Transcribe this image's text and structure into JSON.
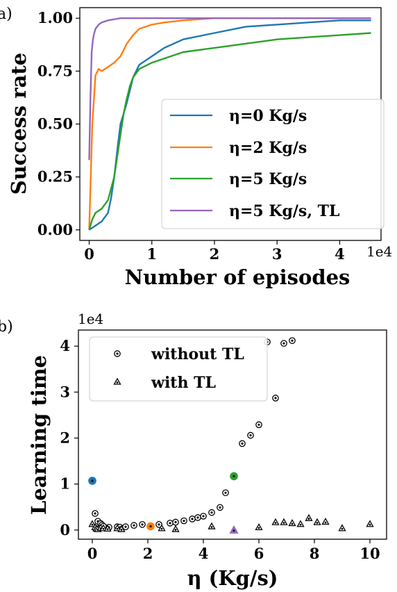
{
  "colors": {
    "blue": "#1f77b4",
    "orange": "#ff7f0e",
    "green": "#2ca02c",
    "purple": "#9467bd"
  },
  "chart_data": [
    {
      "panel_label": "a)",
      "type": "line",
      "xlabel": "Number of episodes",
      "ylabel": "Success rate",
      "x_multiplier": "1e4",
      "xlim": [
        -0.15,
        4.66
      ],
      "ylim": [
        -0.05,
        1.05
      ],
      "xticks": [
        0,
        1,
        2,
        3,
        4
      ],
      "xtick_labels": [
        "0",
        "1",
        "2",
        "3",
        "4"
      ],
      "yticks": [
        0,
        0.25,
        0.5,
        0.75,
        1
      ],
      "ytick_labels": [
        "0.00",
        "0.25",
        "0.50",
        "0.75",
        "1.00"
      ],
      "legend_location": "lower-right",
      "series": [
        {
          "name": "η=0 Kg/s",
          "color_key": "blue",
          "x": [
            0,
            0.1,
            0.2,
            0.3,
            0.35,
            0.4,
            0.45,
            0.5,
            0.55,
            0.6,
            0.65,
            0.7,
            0.8,
            0.9,
            1.0,
            1.2,
            1.5,
            2.0,
            2.5,
            3.0,
            3.5,
            4.0,
            4.5
          ],
          "y": [
            0.0,
            0.02,
            0.04,
            0.08,
            0.15,
            0.25,
            0.38,
            0.5,
            0.55,
            0.6,
            0.66,
            0.72,
            0.78,
            0.8,
            0.82,
            0.86,
            0.9,
            0.93,
            0.96,
            0.97,
            0.98,
            0.99,
            0.99
          ]
        },
        {
          "name": "η=2 Kg/s",
          "color_key": "orange",
          "x": [
            0,
            0.05,
            0.1,
            0.15,
            0.2,
            0.3,
            0.4,
            0.5,
            0.6,
            0.7,
            0.8,
            1.0,
            1.2,
            1.5,
            2.0,
            2.5,
            3.0,
            3.5,
            4.0,
            4.5
          ],
          "y": [
            0.0,
            0.5,
            0.73,
            0.76,
            0.75,
            0.77,
            0.79,
            0.82,
            0.88,
            0.92,
            0.95,
            0.97,
            0.98,
            0.99,
            1.0,
            1.0,
            1.0,
            1.0,
            1.0,
            1.0
          ]
        },
        {
          "name": "η=5 Kg/s",
          "color_key": "green",
          "x": [
            0,
            0.05,
            0.1,
            0.2,
            0.3,
            0.4,
            0.5,
            0.55,
            0.6,
            0.65,
            0.7,
            0.8,
            1.0,
            1.2,
            1.5,
            2.0,
            2.5,
            3.0,
            3.5,
            4.0,
            4.5
          ],
          "y": [
            0.0,
            0.05,
            0.08,
            0.1,
            0.14,
            0.25,
            0.45,
            0.55,
            0.62,
            0.68,
            0.72,
            0.76,
            0.79,
            0.81,
            0.84,
            0.86,
            0.88,
            0.9,
            0.91,
            0.92,
            0.93
          ]
        },
        {
          "name": "η=5 Kg/s, TL",
          "color_key": "purple",
          "x": [
            0,
            0.02,
            0.04,
            0.06,
            0.08,
            0.1,
            0.15,
            0.2,
            0.3,
            0.5,
            1.0,
            2.0,
            3.0,
            4.0,
            4.5
          ],
          "y": [
            0.33,
            0.62,
            0.84,
            0.9,
            0.93,
            0.95,
            0.97,
            0.98,
            0.99,
            1.0,
            1.0,
            1.0,
            1.0,
            1.0,
            1.0
          ]
        }
      ]
    },
    {
      "panel_label": "b)",
      "type": "scatter",
      "xlabel": "η (Kg/s)",
      "ylabel": "Learning time",
      "y_multiplier": "1e4",
      "xlim": [
        -0.5,
        10.6
      ],
      "ylim": [
        -0.2,
        4.35
      ],
      "xticks": [
        0,
        2,
        4,
        6,
        8,
        10
      ],
      "xtick_labels": [
        "0",
        "2",
        "4",
        "6",
        "8",
        "10"
      ],
      "yticks": [
        0,
        1,
        2,
        3,
        4
      ],
      "ytick_labels": [
        "0",
        "1",
        "2",
        "3",
        "4"
      ],
      "legend_location": "upper-left",
      "series": [
        {
          "name": "without TL",
          "marker": "circle",
          "x": [
            0.1,
            0.2,
            0.3,
            0.35,
            0.4,
            0.6,
            0.9,
            1.0,
            1.2,
            1.5,
            1.8,
            2.4,
            2.8,
            3.0,
            3.3,
            3.6,
            3.8,
            4.0,
            4.3,
            4.6,
            4.8,
            5.4,
            5.7,
            6.0,
            6.3,
            6.6,
            6.9,
            7.2
          ],
          "y": [
            0.36,
            0.19,
            0.14,
            0.11,
            0.08,
            0.06,
            0.07,
            0.06,
            0.07,
            0.1,
            0.12,
            0.12,
            0.15,
            0.17,
            0.2,
            0.24,
            0.27,
            0.3,
            0.38,
            0.49,
            0.81,
            1.88,
            2.06,
            2.29,
            4.09,
            2.87,
            4.06,
            4.12
          ]
        },
        {
          "name": "with TL",
          "marker": "triangle",
          "x": [
            0.0,
            0.1,
            0.15,
            0.2,
            0.3,
            0.4,
            0.55,
            0.9,
            1.05,
            2.5,
            3.0,
            4.3,
            6.0,
            6.6,
            6.9,
            7.2,
            7.5,
            7.8,
            8.1,
            8.4,
            9.0,
            10.0
          ],
          "y": [
            0.13,
            0.06,
            0.03,
            0.02,
            0.05,
            0.04,
            0.03,
            0.04,
            0.02,
            0.04,
            0.02,
            0.08,
            0.06,
            0.17,
            0.17,
            0.15,
            0.13,
            0.26,
            0.17,
            0.18,
            0.04,
            0.13
          ]
        },
        {
          "name": "",
          "marker": "circle",
          "color_key": "blue",
          "x": [
            0.0
          ],
          "y": [
            1.07
          ]
        },
        {
          "name": "",
          "marker": "circle",
          "color_key": "orange",
          "x": [
            2.1
          ],
          "y": [
            0.08
          ]
        },
        {
          "name": "",
          "marker": "circle",
          "color_key": "green",
          "x": [
            5.1
          ],
          "y": [
            1.17
          ]
        },
        {
          "name": "",
          "marker": "triangle",
          "color_key": "purple",
          "x": [
            5.1
          ],
          "y": [
            0.0
          ]
        }
      ]
    }
  ]
}
